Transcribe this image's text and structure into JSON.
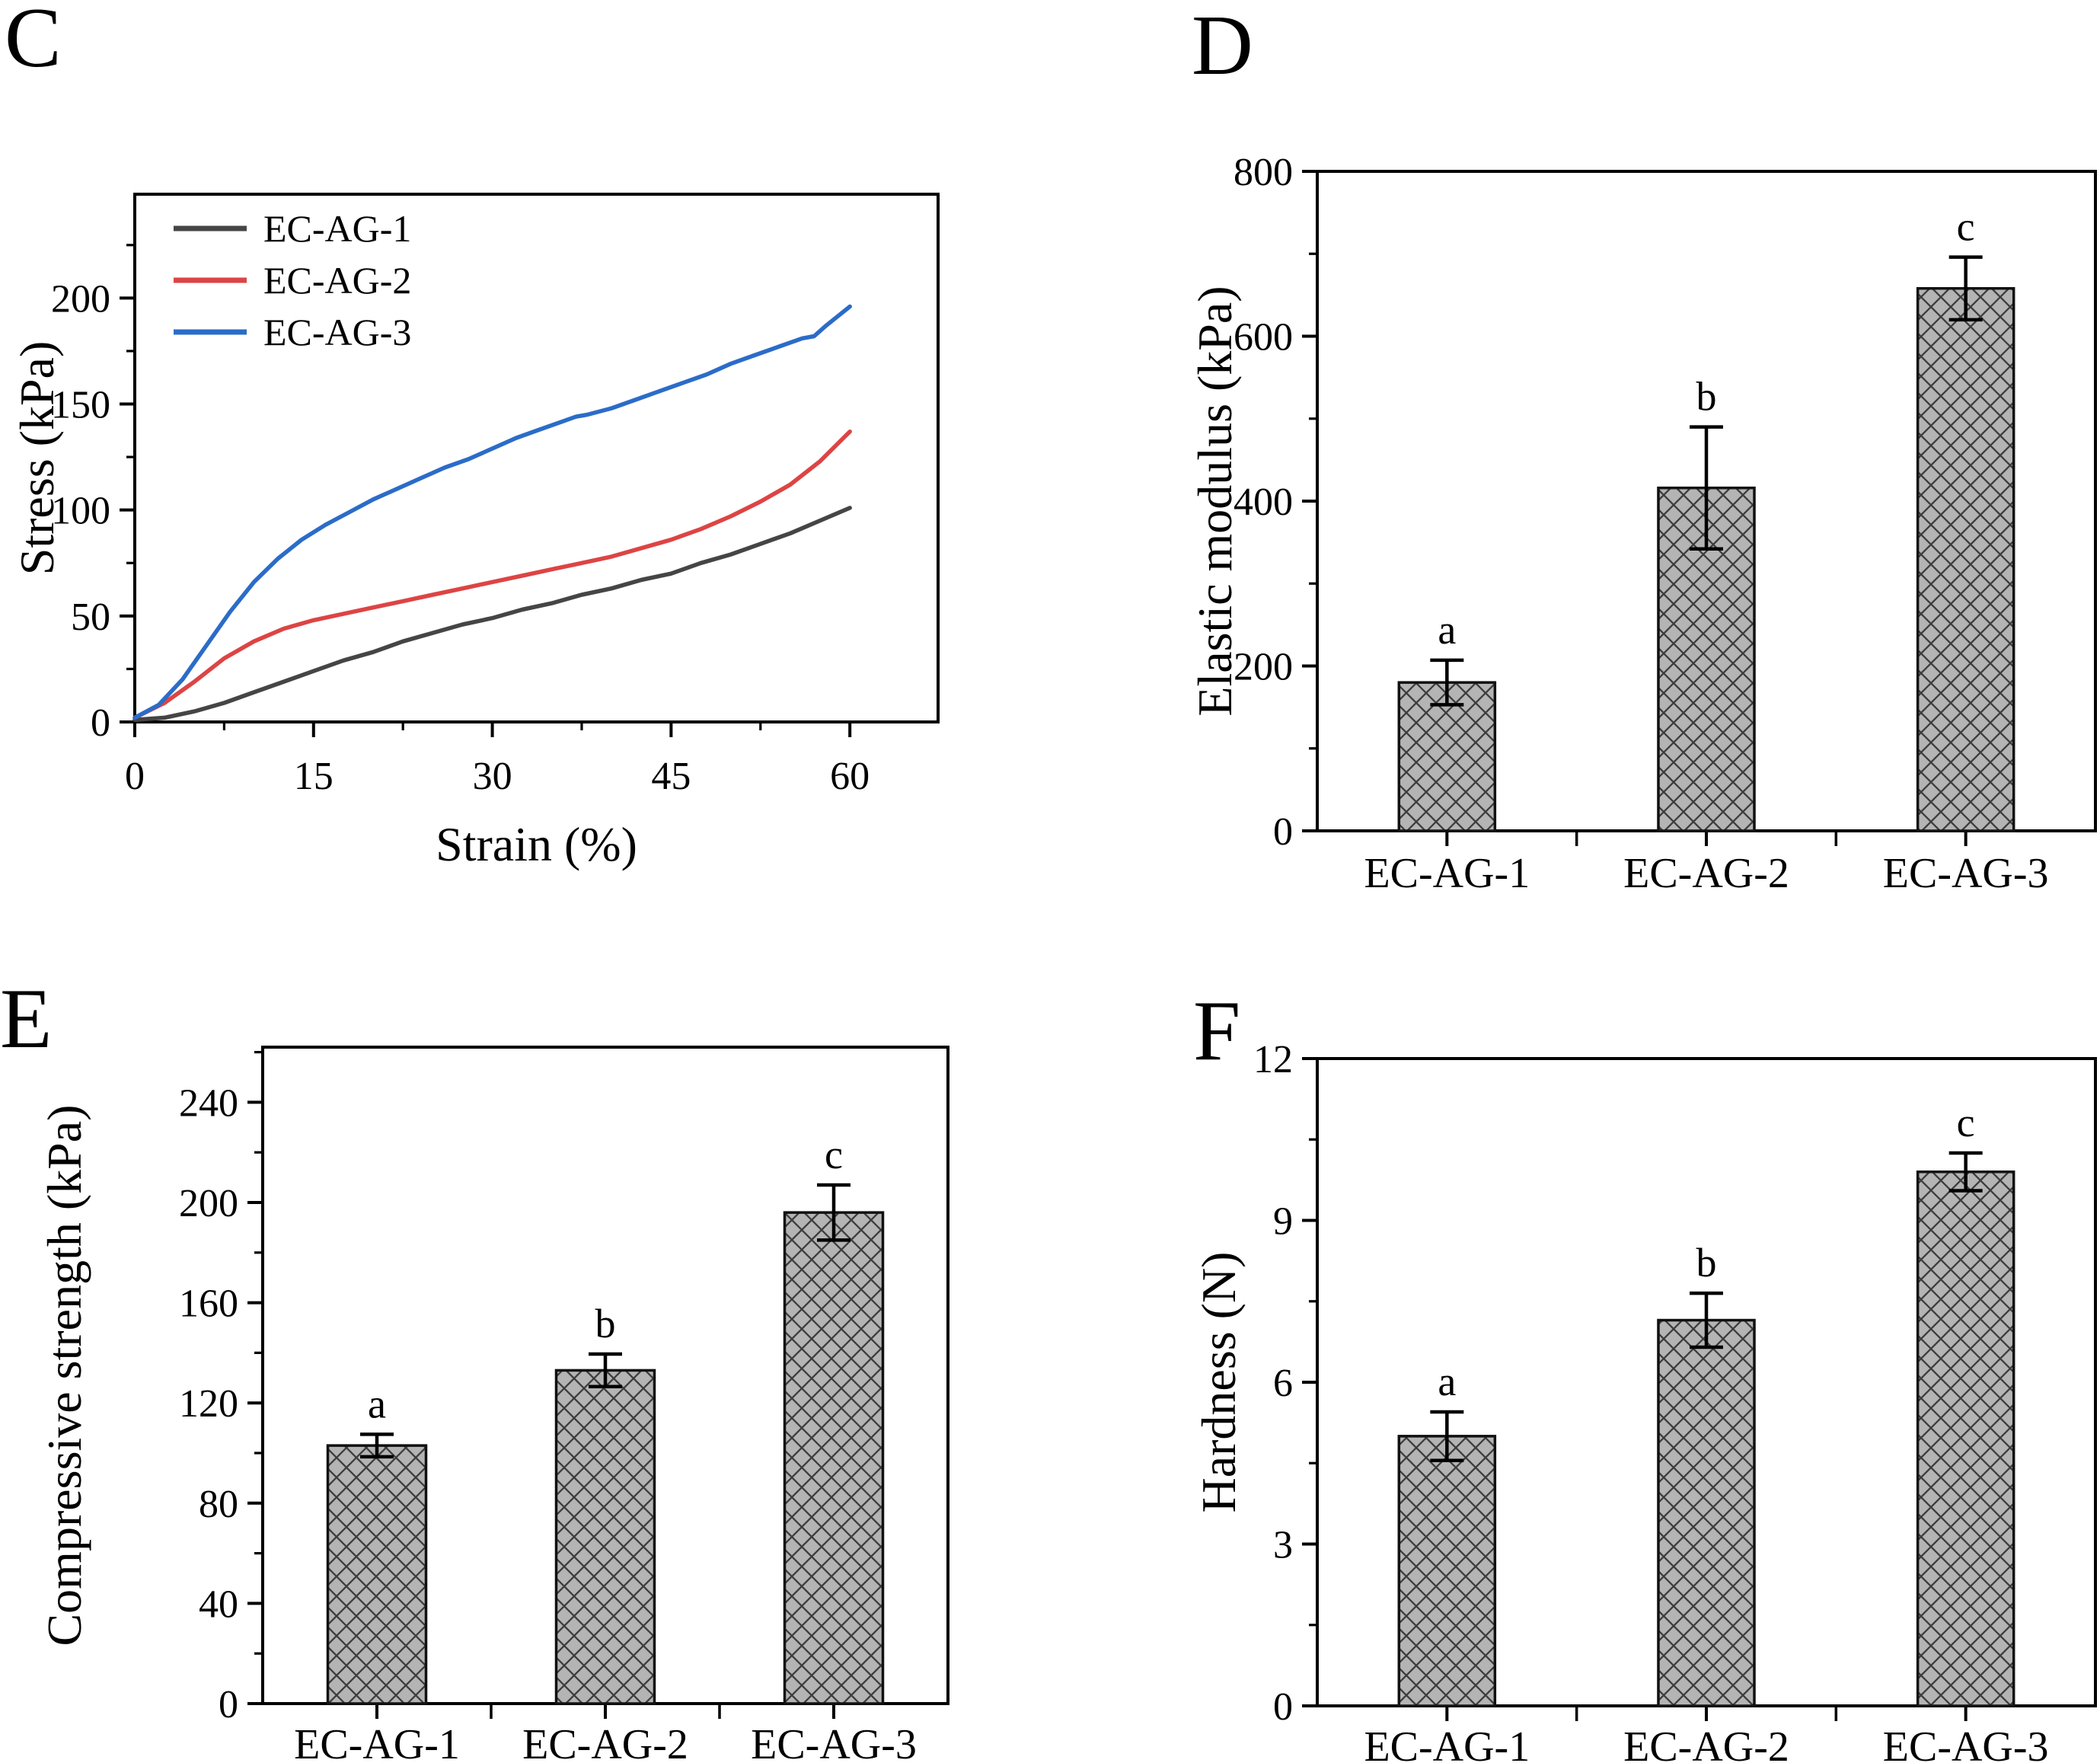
{
  "page": {
    "background": "#ffffff"
  },
  "panels": {
    "C": {
      "letter": "C"
    },
    "D": {
      "letter": "D"
    },
    "E": {
      "letter": "E"
    },
    "F": {
      "letter": "F"
    }
  },
  "colors": {
    "axis": "#000000",
    "bar_fill": "#b4b4b4",
    "bar_hatch": "#3d3d3d",
    "bar_edge": "#111111",
    "series_ec_ag_1": "#454545",
    "series_ec_ag_2": "#dd4444",
    "series_ec_ag_3": "#2b6cc8"
  },
  "chart_data": [
    {
      "id": "C",
      "type": "line",
      "title": "",
      "xlabel": "Strain (%)",
      "ylabel": "Stress (kPa)",
      "xlim": [
        0,
        67.4
      ],
      "ylim": [
        0,
        249
      ],
      "xticks": [
        0,
        15,
        30,
        45,
        60
      ],
      "yticks": [
        0,
        50,
        100,
        150,
        200
      ],
      "minor_x_step": 7.5,
      "minor_y_step": 25,
      "grid": false,
      "legend_position": "top-left",
      "series": [
        {
          "name": "EC-AG-1",
          "color": "#454545",
          "x": [
            0,
            2.5,
            5,
            7.5,
            10,
            12.5,
            15,
            17.5,
            20,
            22.5,
            25,
            27.5,
            30,
            32.5,
            35,
            37.5,
            40,
            42.5,
            45,
            47.5,
            50,
            52.5,
            55,
            57.5,
            60
          ],
          "y": [
            1,
            2,
            5,
            9,
            14,
            19,
            24,
            29,
            33,
            38,
            42,
            46,
            49,
            53,
            56,
            60,
            63,
            67,
            70,
            75,
            79,
            84,
            89,
            95,
            101
          ]
        },
        {
          "name": "EC-AG-2",
          "color": "#dd4444",
          "x": [
            0,
            2.5,
            5,
            7.5,
            10,
            12.5,
            15,
            17.5,
            20,
            22.5,
            25,
            27.5,
            30,
            32.5,
            35,
            37.5,
            40,
            42.5,
            45,
            47.5,
            50,
            52.5,
            55,
            57.5,
            60
          ],
          "y": [
            2,
            9,
            19,
            30,
            38,
            44,
            48,
            51,
            54,
            57,
            60,
            63,
            66,
            69,
            72,
            75,
            78,
            82,
            86,
            91,
            97,
            104,
            112,
            123,
            137
          ]
        },
        {
          "name": "EC-AG-3",
          "color": "#2b6cc8",
          "x": [
            0,
            2,
            4,
            6,
            8,
            10,
            12,
            14,
            16,
            18,
            20,
            22,
            24,
            26,
            28,
            30,
            32,
            34,
            36,
            37,
            38,
            40,
            42,
            44,
            46,
            48,
            50,
            52,
            54,
            56,
            57,
            58,
            60
          ],
          "y": [
            2,
            8,
            20,
            36,
            52,
            66,
            77,
            86,
            93,
            99,
            105,
            110,
            115,
            120,
            124,
            129,
            134,
            138,
            142,
            144,
            145,
            148,
            152,
            156,
            160,
            164,
            169,
            173,
            177,
            181,
            182,
            187,
            196
          ]
        }
      ]
    },
    {
      "id": "D",
      "type": "bar",
      "title": "",
      "xlabel": "",
      "ylabel": "Elastic modulus (kPa)",
      "categories": [
        "EC-AG-1",
        "EC-AG-2",
        "EC-AG-3"
      ],
      "values": [
        180,
        416,
        658
      ],
      "errors": [
        27,
        74,
        38
      ],
      "sig_letters": [
        "a",
        "b",
        "c"
      ],
      "ylim": [
        0,
        800
      ],
      "yticks": [
        0,
        200,
        400,
        600,
        800
      ],
      "minor_y_step": 100,
      "grid": false
    },
    {
      "id": "E",
      "type": "bar",
      "title": "",
      "xlabel": "",
      "ylabel": "Compressive strength (kPa)",
      "categories": [
        "EC-AG-1",
        "EC-AG-2",
        "EC-AG-3"
      ],
      "values": [
        103,
        133,
        196
      ],
      "errors": [
        4.5,
        6.5,
        11
      ],
      "sig_letters": [
        "a",
        "b",
        "c"
      ],
      "ylim": [
        0,
        262
      ],
      "yticks": [
        0,
        40,
        80,
        120,
        160,
        200,
        240
      ],
      "minor_y_step": 20,
      "grid": false
    },
    {
      "id": "F",
      "type": "bar",
      "title": "",
      "xlabel": "",
      "ylabel": "Hardness (N)",
      "categories": [
        "EC-AG-1",
        "EC-AG-2",
        "EC-AG-3"
      ],
      "values": [
        5.0,
        7.15,
        9.9
      ],
      "errors": [
        0.45,
        0.5,
        0.35
      ],
      "sig_letters": [
        "a",
        "b",
        "c"
      ],
      "ylim": [
        0,
        12
      ],
      "yticks": [
        0,
        3,
        6,
        9,
        12
      ],
      "minor_y_step": 1.5,
      "grid": false
    }
  ]
}
